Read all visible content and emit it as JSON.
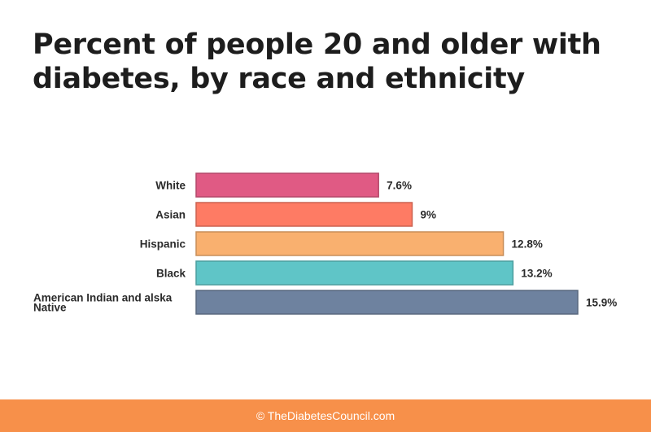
{
  "title": "Percent of people 20 and older with diabetes, by race and ethnicity",
  "footer": {
    "text": "© TheDiabetesCouncil.com"
  },
  "colors": {
    "footer_bg": "#f7904a",
    "title": "#1d1d1d",
    "label_text": "#2b2b2b"
  },
  "chart_data": {
    "type": "bar",
    "orientation": "horizontal",
    "title": "Percent of people 20 and older with diabetes, by race and ethnicity",
    "xlabel": "",
    "ylabel": "",
    "grid": false,
    "categories": [
      "White",
      "Asian",
      "Hispanic",
      "Black",
      "American Indian and alska Native"
    ],
    "category_lines": [
      [
        "White"
      ],
      [
        "Asian"
      ],
      [
        "Hispanic"
      ],
      [
        "Black"
      ],
      [
        "American Indian and alska",
        "Native"
      ]
    ],
    "values": [
      7.6,
      9,
      12.8,
      13.2,
      15.9
    ],
    "value_labels": [
      "7.6%",
      "9%",
      "12.8%",
      "13.2%",
      "15.9%"
    ],
    "colors": [
      "#e05a84",
      "#fe7b64",
      "#f9b06f",
      "#5fc5c7",
      "#6e829f"
    ],
    "xlim": [
      0,
      15.9
    ]
  }
}
